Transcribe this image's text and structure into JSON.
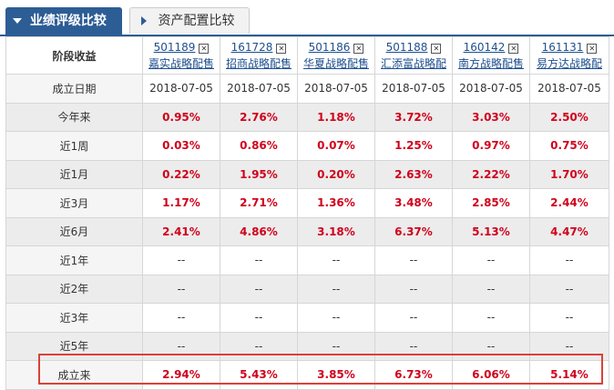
{
  "tabs": {
    "active": "业绩评级比较",
    "inactive": "资产配置比较"
  },
  "table": {
    "corner": "阶段收益",
    "funds": [
      {
        "code": "501189",
        "name": "嘉实战略配售"
      },
      {
        "code": "161728",
        "name": "招商战略配售"
      },
      {
        "code": "501186",
        "name": "华夏战略配售"
      },
      {
        "code": "501188",
        "name": "汇添富战略配"
      },
      {
        "code": "160142",
        "name": "南方战略配售"
      },
      {
        "code": "161131",
        "name": "易方达战略配"
      }
    ],
    "close_glyph": "✕",
    "rows": [
      {
        "label": "成立日期",
        "values": [
          "2018-07-05",
          "2018-07-05",
          "2018-07-05",
          "2018-07-05",
          "2018-07-05",
          "2018-07-05"
        ]
      },
      {
        "label": "今年来",
        "values": [
          "0.95%",
          "2.76%",
          "1.18%",
          "3.72%",
          "3.03%",
          "2.50%"
        ]
      },
      {
        "label": "近1周",
        "values": [
          "0.03%",
          "0.86%",
          "0.07%",
          "1.25%",
          "0.97%",
          "0.75%"
        ]
      },
      {
        "label": "近1月",
        "values": [
          "0.22%",
          "1.95%",
          "0.20%",
          "2.63%",
          "2.22%",
          "1.70%"
        ]
      },
      {
        "label": "近3月",
        "values": [
          "1.17%",
          "2.71%",
          "1.36%",
          "3.48%",
          "2.85%",
          "2.44%"
        ]
      },
      {
        "label": "近6月",
        "values": [
          "2.41%",
          "4.86%",
          "3.18%",
          "6.37%",
          "5.13%",
          "4.47%"
        ]
      },
      {
        "label": "近1年",
        "values": [
          "--",
          "--",
          "--",
          "--",
          "--",
          "--"
        ]
      },
      {
        "label": "近2年",
        "values": [
          "--",
          "--",
          "--",
          "--",
          "--",
          "--"
        ]
      },
      {
        "label": "近3年",
        "values": [
          "--",
          "--",
          "--",
          "--",
          "--",
          "--"
        ]
      },
      {
        "label": "近5年",
        "values": [
          "--",
          "--",
          "--",
          "--",
          "--",
          "--"
        ]
      },
      {
        "label": "成立来",
        "values": [
          "2.94%",
          "5.43%",
          "3.85%",
          "6.73%",
          "6.06%",
          "5.14%"
        ]
      }
    ]
  },
  "colors": {
    "accent": "#2d5d95",
    "positive": "#d0021b",
    "highlight_border": "#d9413a"
  }
}
